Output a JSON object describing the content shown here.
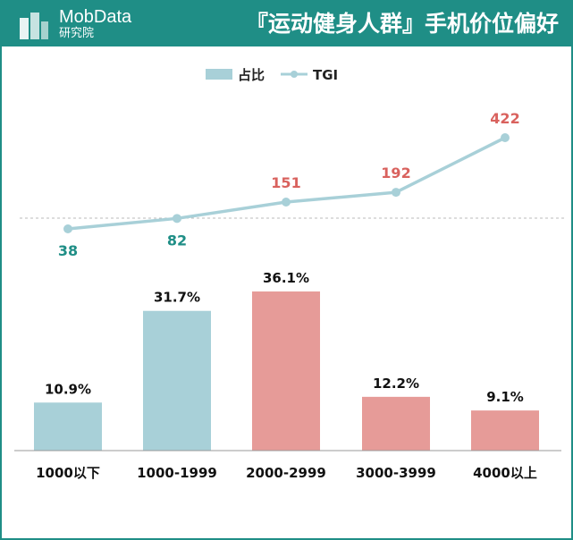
{
  "header": {
    "brand": "MobData",
    "brand_sub": "研究院",
    "title": "『运动健身人群』手机价位偏好"
  },
  "colors": {
    "header_bg": "#1f8e86",
    "bar_blue": "#a8d0d8",
    "bar_pink": "#e69b98",
    "line": "#a8d0d8",
    "tgi_low": "#1f8e86",
    "tgi_high": "#d9625e"
  },
  "chart_data": {
    "type": "bar",
    "categories": [
      "1000以下",
      "1000-1999",
      "2000-2999",
      "3000-3999",
      "4000以上"
    ],
    "series": [
      {
        "name": "占比",
        "type": "bar",
        "values": [
          10.9,
          31.7,
          36.1,
          12.2,
          9.1
        ],
        "labels": [
          "10.9%",
          "31.7%",
          "36.1%",
          "12.2%",
          "9.1%"
        ],
        "bar_colors": [
          "blue",
          "blue",
          "pink",
          "pink",
          "pink"
        ]
      },
      {
        "name": "TGI",
        "type": "line",
        "values": [
          38,
          82,
          151,
          192,
          422
        ],
        "label_colors": [
          "low",
          "low",
          "high",
          "high",
          "high"
        ]
      }
    ],
    "reference_line": 100,
    "legend": "top-center"
  }
}
